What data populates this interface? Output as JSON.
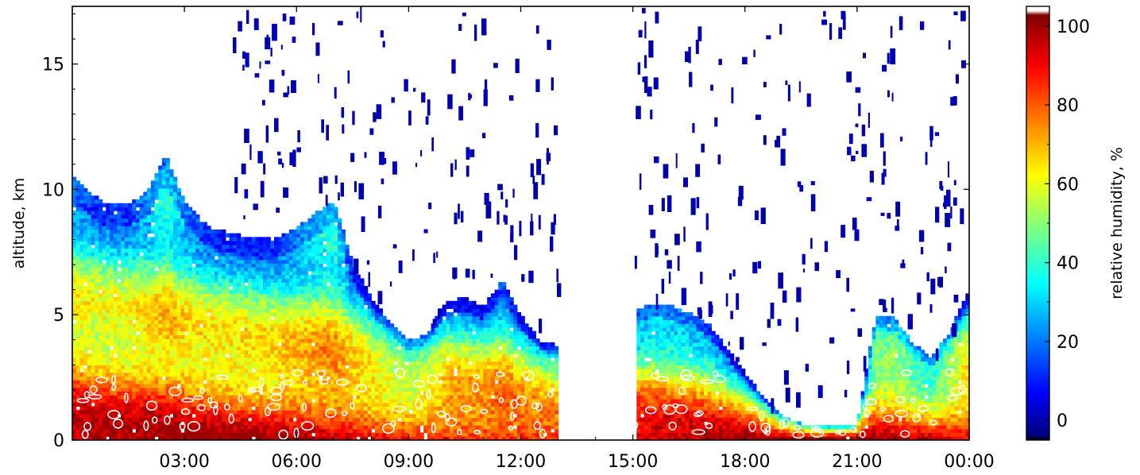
{
  "chart_data": {
    "type": "heatmap",
    "title": "",
    "xlabel": "",
    "ylabel": "altitude, km",
    "colorbar_label": "relative humidity, %",
    "x_ticks": [
      "03:00",
      "06:00",
      "09:00",
      "12:00",
      "15:00",
      "18:00",
      "21:00",
      "00:00"
    ],
    "x_tick_hours": [
      3,
      6,
      9,
      12,
      15,
      18,
      21,
      24
    ],
    "xlim_hours": [
      0,
      24
    ],
    "y_ticks": [
      "0",
      "5",
      "10",
      "15"
    ],
    "y_tick_values": [
      0,
      5,
      10,
      15
    ],
    "ylim_km": [
      0,
      17.3
    ],
    "colorbar_ticks": [
      "0",
      "20",
      "40",
      "60",
      "80",
      "100"
    ],
    "colorbar_tick_values": [
      0,
      20,
      40,
      60,
      80,
      100
    ],
    "clim": [
      -5,
      105
    ],
    "colormap": "jet",
    "no_data_color": "#ffffff",
    "contour_color": "#ffffff",
    "no_data_interval_hours": [
      13.0,
      15.0
    ],
    "cloud_top_km": [
      [
        0.0,
        10.5
      ],
      [
        0.5,
        9.8
      ],
      [
        1.0,
        9.3
      ],
      [
        1.5,
        9.4
      ],
      [
        2.0,
        9.8
      ],
      [
        2.5,
        11.3
      ],
      [
        3.0,
        9.5
      ],
      [
        3.5,
        8.6
      ],
      [
        4.0,
        8.3
      ],
      [
        4.5,
        8.1
      ],
      [
        5.0,
        8.0
      ],
      [
        5.5,
        8.0
      ],
      [
        6.0,
        8.4
      ],
      [
        6.5,
        9.0
      ],
      [
        7.0,
        9.5
      ],
      [
        7.5,
        7.0
      ],
      [
        8.0,
        5.6
      ],
      [
        8.5,
        4.6
      ],
      [
        9.0,
        3.9
      ],
      [
        9.5,
        4.2
      ],
      [
        10.0,
        5.5
      ],
      [
        10.5,
        5.6
      ],
      [
        11.0,
        5.3
      ],
      [
        11.5,
        6.3
      ],
      [
        12.0,
        4.9
      ],
      [
        12.5,
        3.9
      ],
      [
        13.0,
        3.7
      ],
      [
        15.0,
        5.1
      ],
      [
        15.5,
        5.4
      ],
      [
        16.0,
        5.3
      ],
      [
        16.5,
        5.0
      ],
      [
        17.0,
        4.6
      ],
      [
        17.5,
        3.6
      ],
      [
        18.0,
        2.6
      ],
      [
        18.5,
        1.6
      ],
      [
        19.0,
        0.9
      ],
      [
        19.5,
        0.6
      ],
      [
        20.0,
        0.5
      ],
      [
        20.5,
        0.5
      ],
      [
        21.0,
        0.6
      ],
      [
        21.5,
        4.9
      ],
      [
        22.0,
        4.8
      ],
      [
        22.5,
        3.8
      ],
      [
        23.0,
        3.2
      ],
      [
        23.5,
        4.3
      ],
      [
        24.0,
        6.0
      ]
    ],
    "bottom_rh_percent": 95
  }
}
